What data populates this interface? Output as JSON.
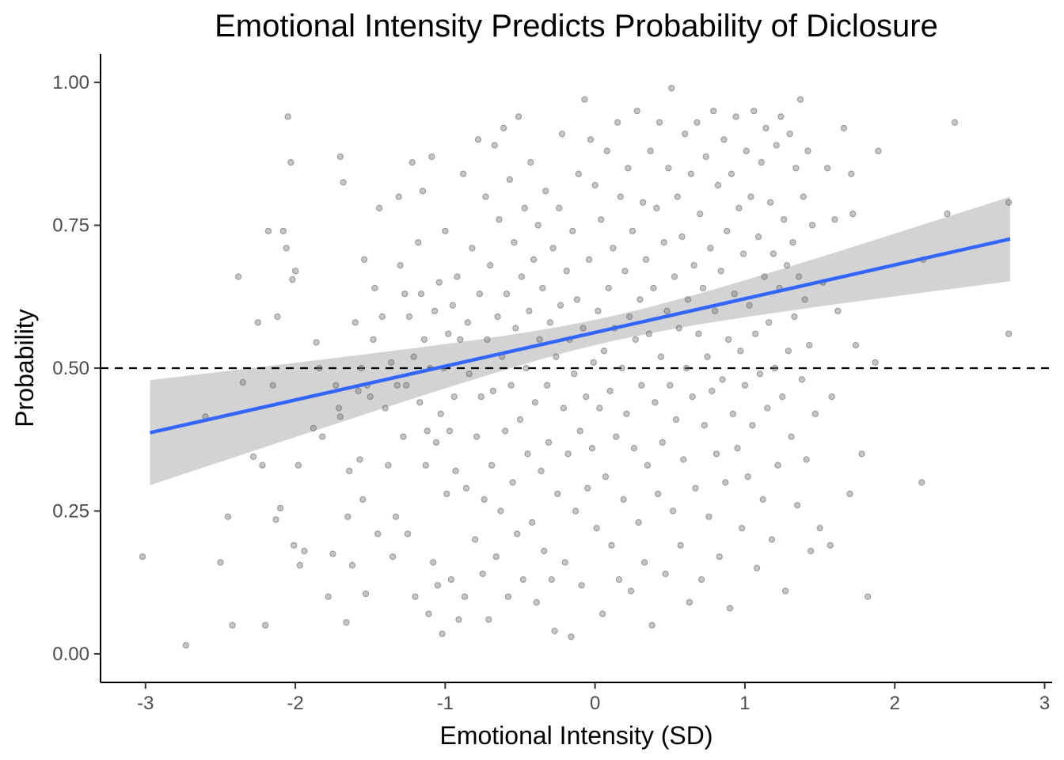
{
  "chart_data": {
    "type": "scatter",
    "title": "Emotional Intensity Predicts Probability of Diclosure",
    "xlabel": "Emotional Intensity (SD)",
    "ylabel": "Probability",
    "xlim": [
      -3.3,
      3.05
    ],
    "ylim": [
      -0.05,
      1.05
    ],
    "xticks": [
      -3,
      -2,
      -1,
      0,
      1,
      2,
      3
    ],
    "xtick_labels": [
      "-3",
      "-2",
      "-1",
      "0",
      "1",
      "2",
      "3"
    ],
    "yticks": [
      0,
      0.25,
      0.5,
      0.75,
      1
    ],
    "ytick_labels": [
      "0.00",
      "0.25",
      "0.50",
      "0.75",
      "1.00"
    ],
    "grid": false,
    "reference_line": {
      "y": 0.5,
      "style": "dashed"
    },
    "trend_line": {
      "type": "linear",
      "x": [
        -2.97,
        2.77
      ],
      "y": [
        0.387,
        0.726
      ],
      "ci_lower": [
        0.298,
        0.645
      ],
      "ci_upper": [
        0.482,
        0.793
      ],
      "ci_center_x": 0.1,
      "ci_center_halfwidth": 0.022,
      "color": "#3366FF",
      "ci_color": "#D3D3D3"
    },
    "point_color": "#7f7f7f",
    "points": [
      [
        -3.02,
        0.17
      ],
      [
        -2.73,
        0.015
      ],
      [
        -2.6,
        0.415
      ],
      [
        -2.5,
        0.16
      ],
      [
        -2.45,
        0.24
      ],
      [
        -2.42,
        0.05
      ],
      [
        -2.38,
        0.66
      ],
      [
        -2.35,
        0.475
      ],
      [
        -2.28,
        0.345
      ],
      [
        -2.25,
        0.58
      ],
      [
        -2.22,
        0.33
      ],
      [
        -2.2,
        0.05
      ],
      [
        -2.18,
        0.74
      ],
      [
        -2.15,
        0.47
      ],
      [
        -2.13,
        0.235
      ],
      [
        -2.12,
        0.59
      ],
      [
        -2.1,
        0.255
      ],
      [
        -2.08,
        0.74
      ],
      [
        -2.06,
        0.71
      ],
      [
        -2.05,
        0.94
      ],
      [
        -2.03,
        0.86
      ],
      [
        -2.02,
        0.655
      ],
      [
        -2.01,
        0.19
      ],
      [
        -2.0,
        0.67
      ],
      [
        -1.98,
        0.33
      ],
      [
        -1.97,
        0.155
      ],
      [
        -1.94,
        0.18
      ],
      [
        -1.88,
        0.395
      ],
      [
        -1.86,
        0.545
      ],
      [
        -1.84,
        0.5
      ],
      [
        -1.82,
        0.38
      ],
      [
        -1.78,
        0.1
      ],
      [
        -1.75,
        0.175
      ],
      [
        -1.73,
        0.47
      ],
      [
        -1.71,
        0.43
      ],
      [
        -1.7,
        0.87
      ],
      [
        -1.7,
        0.415
      ],
      [
        -1.68,
        0.825
      ],
      [
        -1.66,
        0.055
      ],
      [
        -1.65,
        0.24
      ],
      [
        -1.64,
        0.32
      ],
      [
        -1.62,
        0.155
      ],
      [
        -1.6,
        0.58
      ],
      [
        -1.58,
        0.46
      ],
      [
        -1.57,
        0.34
      ],
      [
        -1.56,
        0.5
      ],
      [
        -1.55,
        0.27
      ],
      [
        -1.54,
        0.69
      ],
      [
        -1.53,
        0.105
      ],
      [
        -1.52,
        0.47
      ],
      [
        -1.5,
        0.45
      ],
      [
        -1.48,
        0.55
      ],
      [
        -1.47,
        0.64
      ],
      [
        -1.45,
        0.21
      ],
      [
        -1.44,
        0.78
      ],
      [
        -1.42,
        0.59
      ],
      [
        -1.4,
        0.43
      ],
      [
        -1.38,
        0.33
      ],
      [
        -1.36,
        0.51
      ],
      [
        -1.35,
        0.17
      ],
      [
        -1.33,
        0.24
      ],
      [
        -1.32,
        0.47
      ],
      [
        -1.31,
        0.8
      ],
      [
        -1.3,
        0.68
      ],
      [
        -1.28,
        0.38
      ],
      [
        -1.27,
        0.63
      ],
      [
        -1.26,
        0.47
      ],
      [
        -1.25,
        0.21
      ],
      [
        -1.24,
        0.59
      ],
      [
        -1.22,
        0.86
      ],
      [
        -1.21,
        0.52
      ],
      [
        -1.2,
        0.1
      ],
      [
        -1.18,
        0.72
      ],
      [
        -1.17,
        0.44
      ],
      [
        -1.16,
        0.63
      ],
      [
        -1.15,
        0.81
      ],
      [
        -1.14,
        0.55
      ],
      [
        -1.13,
        0.33
      ],
      [
        -1.12,
        0.39
      ],
      [
        -1.11,
        0.07
      ],
      [
        -1.1,
        0.5
      ],
      [
        -1.09,
        0.87
      ],
      [
        -1.08,
        0.16
      ],
      [
        -1.07,
        0.6
      ],
      [
        -1.06,
        0.37
      ],
      [
        -1.05,
        0.12
      ],
      [
        -1.04,
        0.65
      ],
      [
        -1.03,
        0.42
      ],
      [
        -1.02,
        0.035
      ],
      [
        -1.01,
        0.5
      ],
      [
        -1.0,
        0.74
      ],
      [
        -0.99,
        0.28
      ],
      [
        -0.98,
        0.56
      ],
      [
        -0.97,
        0.39
      ],
      [
        -0.96,
        0.13
      ],
      [
        -0.95,
        0.61
      ],
      [
        -0.94,
        0.45
      ],
      [
        -0.93,
        0.32
      ],
      [
        -0.92,
        0.66
      ],
      [
        -0.91,
        0.06
      ],
      [
        -0.9,
        0.55
      ],
      [
        -0.88,
        0.84
      ],
      [
        -0.87,
        0.1
      ],
      [
        -0.86,
        0.29
      ],
      [
        -0.85,
        0.58
      ],
      [
        -0.84,
        0.49
      ],
      [
        -0.82,
        0.71
      ],
      [
        -0.8,
        0.2
      ],
      [
        -0.79,
        0.38
      ],
      [
        -0.78,
        0.9
      ],
      [
        -0.77,
        0.63
      ],
      [
        -0.76,
        0.45
      ],
      [
        -0.75,
        0.14
      ],
      [
        -0.74,
        0.27
      ],
      [
        -0.73,
        0.8
      ],
      [
        -0.72,
        0.55
      ],
      [
        -0.71,
        0.06
      ],
      [
        -0.7,
        0.68
      ],
      [
        -0.69,
        0.33
      ],
      [
        -0.68,
        0.46
      ],
      [
        -0.67,
        0.89
      ],
      [
        -0.66,
        0.17
      ],
      [
        -0.65,
        0.59
      ],
      [
        -0.64,
        0.76
      ],
      [
        -0.63,
        0.25
      ],
      [
        -0.62,
        0.52
      ],
      [
        -0.61,
        0.92
      ],
      [
        -0.6,
        0.39
      ],
      [
        -0.59,
        0.63
      ],
      [
        -0.58,
        0.1
      ],
      [
        -0.57,
        0.83
      ],
      [
        -0.56,
        0.47
      ],
      [
        -0.55,
        0.3
      ],
      [
        -0.54,
        0.72
      ],
      [
        -0.53,
        0.57
      ],
      [
        -0.52,
        0.21
      ],
      [
        -0.51,
        0.94
      ],
      [
        -0.5,
        0.41
      ],
      [
        -0.49,
        0.66
      ],
      [
        -0.48,
        0.13
      ],
      [
        -0.47,
        0.78
      ],
      [
        -0.46,
        0.5
      ],
      [
        -0.45,
        0.35
      ],
      [
        -0.44,
        0.6
      ],
      [
        -0.43,
        0.86
      ],
      [
        -0.42,
        0.23
      ],
      [
        -0.41,
        0.69
      ],
      [
        -0.4,
        0.44
      ],
      [
        -0.39,
        0.09
      ],
      [
        -0.38,
        0.75
      ],
      [
        -0.37,
        0.55
      ],
      [
        -0.36,
        0.32
      ],
      [
        -0.35,
        0.64
      ],
      [
        -0.34,
        0.18
      ],
      [
        -0.33,
        0.81
      ],
      [
        -0.32,
        0.47
      ],
      [
        -0.31,
        0.37
      ],
      [
        -0.3,
        0.58
      ],
      [
        -0.29,
        0.13
      ],
      [
        -0.28,
        0.71
      ],
      [
        -0.27,
        0.04
      ],
      [
        -0.26,
        0.52
      ],
      [
        -0.25,
        0.28
      ],
      [
        -0.24,
        0.78
      ],
      [
        -0.23,
        0.61
      ],
      [
        -0.22,
        0.91
      ],
      [
        -0.21,
        0.43
      ],
      [
        -0.2,
        0.16
      ],
      [
        -0.19,
        0.67
      ],
      [
        -0.18,
        0.35
      ],
      [
        -0.17,
        0.55
      ],
      [
        -0.16,
        0.03
      ],
      [
        -0.15,
        0.74
      ],
      [
        -0.14,
        0.49
      ],
      [
        -0.13,
        0.25
      ],
      [
        -0.12,
        0.62
      ],
      [
        -0.11,
        0.84
      ],
      [
        -0.1,
        0.39
      ],
      [
        -0.09,
        0.12
      ],
      [
        -0.08,
        0.57
      ],
      [
        -0.07,
        0.97
      ],
      [
        -0.06,
        0.45
      ],
      [
        -0.05,
        0.29
      ],
      [
        -0.04,
        0.69
      ],
      [
        -0.03,
        0.9
      ],
      [
        -0.02,
        0.36
      ],
      [
        -0.01,
        0.51
      ],
      [
        0.0,
        0.82
      ],
      [
        0.01,
        0.22
      ],
      [
        0.02,
        0.6
      ],
      [
        0.03,
        0.43
      ],
      [
        0.04,
        0.76
      ],
      [
        0.05,
        0.07
      ],
      [
        0.06,
        0.53
      ],
      [
        0.07,
        0.31
      ],
      [
        0.08,
        0.88
      ],
      [
        0.09,
        0.64
      ],
      [
        0.1,
        0.46
      ],
      [
        0.11,
        0.19
      ],
      [
        0.12,
        0.71
      ],
      [
        0.13,
        0.57
      ],
      [
        0.14,
        0.38
      ],
      [
        0.15,
        0.93
      ],
      [
        0.16,
        0.13
      ],
      [
        0.17,
        0.8
      ],
      [
        0.18,
        0.5
      ],
      [
        0.19,
        0.27
      ],
      [
        0.2,
        0.67
      ],
      [
        0.21,
        0.42
      ],
      [
        0.22,
        0.85
      ],
      [
        0.23,
        0.59
      ],
      [
        0.24,
        0.11
      ],
      [
        0.25,
        0.74
      ],
      [
        0.26,
        0.36
      ],
      [
        0.27,
        0.55
      ],
      [
        0.28,
        0.95
      ],
      [
        0.29,
        0.23
      ],
      [
        0.3,
        0.62
      ],
      [
        0.31,
        0.47
      ],
      [
        0.32,
        0.79
      ],
      [
        0.33,
        0.16
      ],
      [
        0.34,
        0.69
      ],
      [
        0.35,
        0.33
      ],
      [
        0.36,
        0.56
      ],
      [
        0.37,
        0.88
      ],
      [
        0.38,
        0.05
      ],
      [
        0.39,
        0.64
      ],
      [
        0.4,
        0.44
      ],
      [
        0.41,
        0.78
      ],
      [
        0.42,
        0.28
      ],
      [
        0.43,
        0.93
      ],
      [
        0.44,
        0.52
      ],
      [
        0.45,
        0.37
      ],
      [
        0.46,
        0.72
      ],
      [
        0.47,
        0.14
      ],
      [
        0.48,
        0.6
      ],
      [
        0.49,
        0.85
      ],
      [
        0.5,
        0.47
      ],
      [
        0.51,
        0.99
      ],
      [
        0.52,
        0.25
      ],
      [
        0.53,
        0.66
      ],
      [
        0.54,
        0.41
      ],
      [
        0.55,
        0.8
      ],
      [
        0.56,
        0.57
      ],
      [
        0.57,
        0.19
      ],
      [
        0.58,
        0.73
      ],
      [
        0.59,
        0.34
      ],
      [
        0.6,
        0.91
      ],
      [
        0.61,
        0.5
      ],
      [
        0.62,
        0.62
      ],
      [
        0.63,
        0.09
      ],
      [
        0.64,
        0.84
      ],
      [
        0.65,
        0.45
      ],
      [
        0.66,
        0.68
      ],
      [
        0.67,
        0.29
      ],
      [
        0.68,
        0.93
      ],
      [
        0.69,
        0.56
      ],
      [
        0.7,
        0.77
      ],
      [
        0.71,
        0.13
      ],
      [
        0.72,
        0.64
      ],
      [
        0.73,
        0.4
      ],
      [
        0.74,
        0.87
      ],
      [
        0.75,
        0.52
      ],
      [
        0.76,
        0.24
      ],
      [
        0.77,
        0.71
      ],
      [
        0.78,
        0.46
      ],
      [
        0.79,
        0.95
      ],
      [
        0.8,
        0.6
      ],
      [
        0.81,
        0.35
      ],
      [
        0.82,
        0.82
      ],
      [
        0.83,
        0.17
      ],
      [
        0.84,
        0.67
      ],
      [
        0.85,
        0.48
      ],
      [
        0.86,
        0.9
      ],
      [
        0.87,
        0.3
      ],
      [
        0.88,
        0.74
      ],
      [
        0.89,
        0.55
      ],
      [
        0.9,
        0.08
      ],
      [
        0.91,
        0.84
      ],
      [
        0.92,
        0.42
      ],
      [
        0.93,
        0.63
      ],
      [
        0.94,
        0.94
      ],
      [
        0.95,
        0.36
      ],
      [
        0.96,
        0.78
      ],
      [
        0.97,
        0.53
      ],
      [
        0.98,
        0.22
      ],
      [
        0.99,
        0.7
      ],
      [
        1.0,
        0.47
      ],
      [
        1.01,
        0.88
      ],
      [
        1.02,
        0.31
      ],
      [
        1.03,
        0.61
      ],
      [
        1.04,
        0.8
      ],
      [
        1.05,
        0.4
      ],
      [
        1.06,
        0.95
      ],
      [
        1.07,
        0.56
      ],
      [
        1.08,
        0.15
      ],
      [
        1.09,
        0.73
      ],
      [
        1.1,
        0.49
      ],
      [
        1.11,
        0.86
      ],
      [
        1.12,
        0.27
      ],
      [
        1.13,
        0.66
      ],
      [
        1.14,
        0.92
      ],
      [
        1.15,
        0.43
      ],
      [
        1.16,
        0.58
      ],
      [
        1.17,
        0.79
      ],
      [
        1.18,
        0.2
      ],
      [
        1.19,
        0.7
      ],
      [
        1.2,
        0.5
      ],
      [
        1.21,
        0.89
      ],
      [
        1.22,
        0.33
      ],
      [
        1.23,
        0.64
      ],
      [
        1.24,
        0.94
      ],
      [
        1.25,
        0.45
      ],
      [
        1.26,
        0.76
      ],
      [
        1.27,
        0.11
      ],
      [
        1.28,
        0.68
      ],
      [
        1.29,
        0.53
      ],
      [
        1.3,
        0.91
      ],
      [
        1.31,
        0.38
      ],
      [
        1.32,
        0.72
      ],
      [
        1.33,
        0.59
      ],
      [
        1.34,
        0.85
      ],
      [
        1.35,
        0.26
      ],
      [
        1.36,
        0.66
      ],
      [
        1.37,
        0.97
      ],
      [
        1.38,
        0.48
      ],
      [
        1.39,
        0.8
      ],
      [
        1.4,
        0.62
      ],
      [
        1.41,
        0.34
      ],
      [
        1.42,
        0.88
      ],
      [
        1.43,
        0.54
      ],
      [
        1.44,
        0.18
      ],
      [
        1.45,
        0.75
      ],
      [
        1.47,
        0.42
      ],
      [
        1.5,
        0.22
      ],
      [
        1.52,
        0.65
      ],
      [
        1.55,
        0.85
      ],
      [
        1.57,
        0.19
      ],
      [
        1.58,
        0.45
      ],
      [
        1.6,
        0.76
      ],
      [
        1.62,
        0.6
      ],
      [
        1.66,
        0.92
      ],
      [
        1.7,
        0.28
      ],
      [
        1.71,
        0.84
      ],
      [
        1.72,
        0.77
      ],
      [
        1.74,
        0.54
      ],
      [
        1.78,
        0.35
      ],
      [
        1.82,
        0.1
      ],
      [
        1.87,
        0.51
      ],
      [
        1.89,
        0.88
      ],
      [
        2.18,
        0.3
      ],
      [
        2.19,
        0.69
      ],
      [
        2.35,
        0.77
      ],
      [
        2.4,
        0.93
      ],
      [
        2.76,
        0.56
      ],
      [
        2.76,
        0.79
      ]
    ]
  }
}
